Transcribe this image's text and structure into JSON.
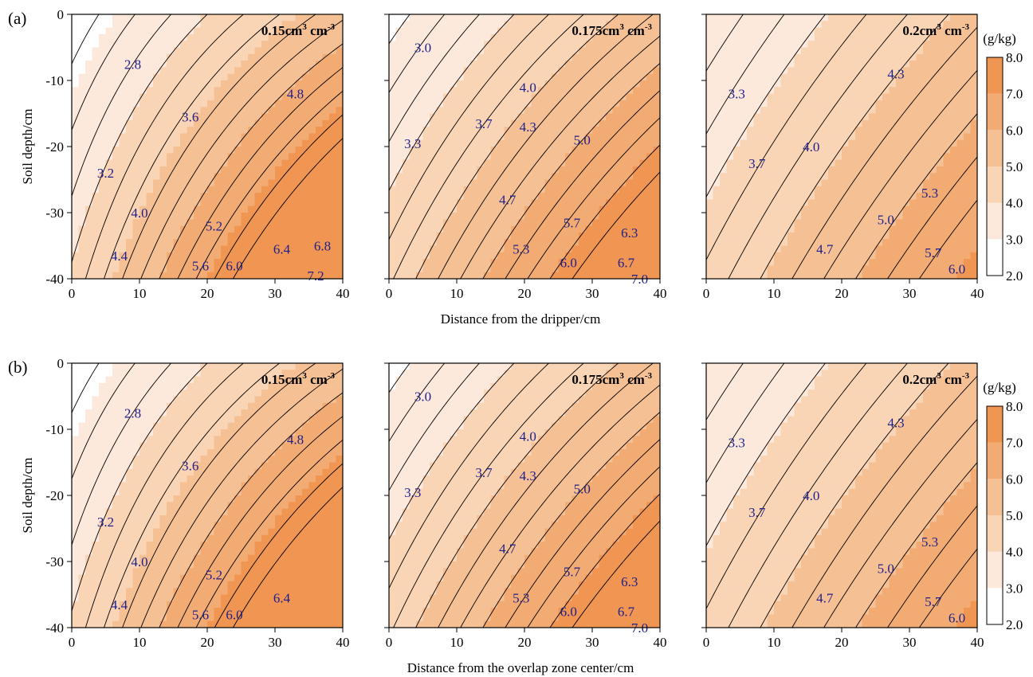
{
  "chart_data": {
    "type": "contour",
    "colorbar": {
      "unit": "(g/kg)",
      "levels": [
        2.0,
        3.0,
        4.0,
        5.0,
        6.0,
        7.0,
        8.0
      ],
      "tick_labels": [
        "2.0",
        "3.0",
        "4.0",
        "5.0",
        "6.0",
        "7.0",
        "8.0"
      ],
      "colors": [
        "#ffffff",
        "#fce9dc",
        "#f9d5b6",
        "#f6c095",
        "#f3ab74",
        "#f09552"
      ]
    },
    "x_ticks": [
      "0",
      "10",
      "20",
      "30",
      "40"
    ],
    "y_ticks": [
      "0",
      "-10",
      "-20",
      "-30",
      "-40"
    ],
    "xlim": [
      0,
      40
    ],
    "ylim": [
      -40,
      0
    ],
    "rows": [
      {
        "label": "(a)",
        "ylabel": "Soil depth/cm",
        "xlabel": "Distance from the dripper/cm",
        "panels": [
          {
            "title": "0.15cm",
            "title_sup1": "3",
            "title_mid": " cm",
            "title_sup2": "-3",
            "contour_labels": [
              {
                "text": "2.8",
                "x": 9.0,
                "y": -7.5
              },
              {
                "text": "3.6",
                "x": 17.5,
                "y": -15.5
              },
              {
                "text": "4.8",
                "x": 33.0,
                "y": -12.0
              },
              {
                "text": "3.2",
                "x": 5.0,
                "y": -24.0
              },
              {
                "text": "4.0",
                "x": 10.0,
                "y": -30.0
              },
              {
                "text": "5.2",
                "x": 21.0,
                "y": -32.0
              },
              {
                "text": "4.4",
                "x": 7.0,
                "y": -36.5
              },
              {
                "text": "5.6",
                "x": 19.0,
                "y": -38.0
              },
              {
                "text": "6.0",
                "x": 24.0,
                "y": -38.0
              },
              {
                "text": "6.4",
                "x": 31.0,
                "y": -35.5
              },
              {
                "text": "6.8",
                "x": 37.0,
                "y": -35.0
              },
              {
                "text": "7.2",
                "x": 36.0,
                "y": -39.5
              }
            ]
          },
          {
            "title": "0.175cm",
            "title_sup1": "3",
            "title_mid": " cm",
            "title_sup2": "-3",
            "contour_labels": [
              {
                "text": "3.0",
                "x": 5.0,
                "y": -5.0
              },
              {
                "text": "4.0",
                "x": 20.5,
                "y": -11.0
              },
              {
                "text": "3.7",
                "x": 14.0,
                "y": -16.5
              },
              {
                "text": "4.3",
                "x": 20.5,
                "y": -17.0
              },
              {
                "text": "3.3",
                "x": 3.5,
                "y": -19.5
              },
              {
                "text": "5.0",
                "x": 28.5,
                "y": -19.0
              },
              {
                "text": "4.7",
                "x": 17.5,
                "y": -28.0
              },
              {
                "text": "5.7",
                "x": 27.0,
                "y": -31.5
              },
              {
                "text": "6.3",
                "x": 35.5,
                "y": -33.0
              },
              {
                "text": "5.3",
                "x": 19.5,
                "y": -35.5
              },
              {
                "text": "6.0",
                "x": 26.5,
                "y": -37.5
              },
              {
                "text": "6.7",
                "x": 35.0,
                "y": -37.5
              },
              {
                "text": "7.0",
                "x": 37.0,
                "y": -40.0
              }
            ]
          },
          {
            "title": "0.2cm",
            "title_sup1": "3",
            "title_mid": " cm",
            "title_sup2": "-3",
            "contour_labels": [
              {
                "text": "4.3",
                "x": 28.0,
                "y": -9.0
              },
              {
                "text": "3.3",
                "x": 4.5,
                "y": -12.0
              },
              {
                "text": "4.0",
                "x": 15.5,
                "y": -20.0
              },
              {
                "text": "3.7",
                "x": 7.5,
                "y": -22.5
              },
              {
                "text": "5.3",
                "x": 33.0,
                "y": -27.0
              },
              {
                "text": "5.0",
                "x": 26.5,
                "y": -31.0
              },
              {
                "text": "4.7",
                "x": 17.5,
                "y": -35.5
              },
              {
                "text": "5.7",
                "x": 33.5,
                "y": -36.0
              },
              {
                "text": "6.0",
                "x": 37.0,
                "y": -38.5
              }
            ]
          }
        ]
      },
      {
        "label": "(b)",
        "ylabel": "Soil depth/cm",
        "xlabel": "Distance from the overlap zone center/cm",
        "panels": [
          {
            "title": "0.15cm",
            "title_sup1": "3",
            "title_mid": " cm",
            "title_sup2": "-3",
            "contour_labels": [
              {
                "text": "2.8",
                "x": 9.0,
                "y": -7.5
              },
              {
                "text": "3.6",
                "x": 17.5,
                "y": -15.5
              },
              {
                "text": "4.8",
                "x": 33.0,
                "y": -11.5
              },
              {
                "text": "3.2",
                "x": 5.0,
                "y": -24.0
              },
              {
                "text": "4.0",
                "x": 10.0,
                "y": -30.0
              },
              {
                "text": "5.2",
                "x": 21.0,
                "y": -32.0
              },
              {
                "text": "4.4",
                "x": 7.0,
                "y": -36.5
              },
              {
                "text": "5.6",
                "x": 19.0,
                "y": -38.0
              },
              {
                "text": "6.0",
                "x": 24.0,
                "y": -38.0
              },
              {
                "text": "6.4",
                "x": 31.0,
                "y": -35.5
              }
            ]
          },
          {
            "title": "0.175cm",
            "title_sup1": "3",
            "title_mid": " cm",
            "title_sup2": "-3",
            "contour_labels": [
              {
                "text": "3.0",
                "x": 5.0,
                "y": -5.0
              },
              {
                "text": "4.0",
                "x": 20.5,
                "y": -11.0
              },
              {
                "text": "3.7",
                "x": 14.0,
                "y": -16.5
              },
              {
                "text": "4.3",
                "x": 20.5,
                "y": -17.0
              },
              {
                "text": "3.3",
                "x": 3.5,
                "y": -19.5
              },
              {
                "text": "5.0",
                "x": 28.5,
                "y": -19.0
              },
              {
                "text": "4.7",
                "x": 17.5,
                "y": -28.0
              },
              {
                "text": "5.7",
                "x": 27.0,
                "y": -31.5
              },
              {
                "text": "6.3",
                "x": 35.5,
                "y": -33.0
              },
              {
                "text": "5.3",
                "x": 19.5,
                "y": -35.5
              },
              {
                "text": "6.0",
                "x": 26.5,
                "y": -37.5
              },
              {
                "text": "6.7",
                "x": 35.0,
                "y": -37.5
              },
              {
                "text": "7.0",
                "x": 37.0,
                "y": -40.0
              }
            ]
          },
          {
            "title": "0.2cm",
            "title_sup1": "3",
            "title_mid": " cm",
            "title_sup2": "-3",
            "contour_labels": [
              {
                "text": "4.3",
                "x": 28.0,
                "y": -9.0
              },
              {
                "text": "3.3",
                "x": 4.5,
                "y": -12.0
              },
              {
                "text": "4.0",
                "x": 15.5,
                "y": -20.0
              },
              {
                "text": "3.7",
                "x": 7.5,
                "y": -22.5
              },
              {
                "text": "5.3",
                "x": 33.0,
                "y": -27.0
              },
              {
                "text": "5.0",
                "x": 26.5,
                "y": -31.0
              },
              {
                "text": "4.7",
                "x": 17.5,
                "y": -35.5
              },
              {
                "text": "5.7",
                "x": 33.5,
                "y": -36.0
              },
              {
                "text": "6.0",
                "x": 37.0,
                "y": -38.5
              }
            ]
          }
        ]
      }
    ]
  }
}
